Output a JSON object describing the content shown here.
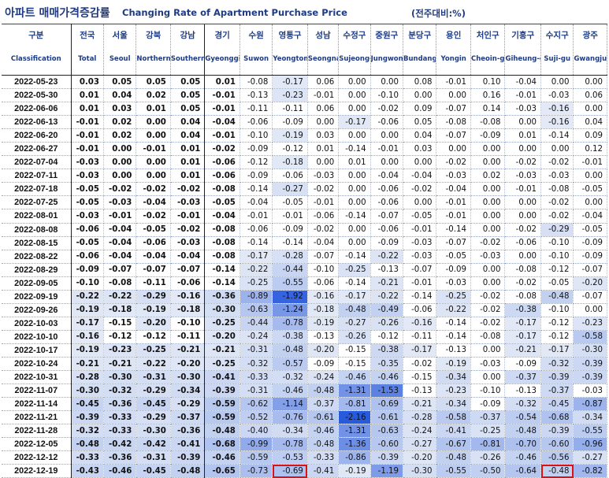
{
  "title_ko": "아파트 매매가격증감률",
  "title_en": "Changing Rate of Apartment Purchase Price",
  "unit": "(전주대비:%)",
  "highlight_color": "#e01010",
  "columns": [
    {
      "ko": "구분",
      "en": "Classification"
    },
    {
      "ko": "전국",
      "en": "Total"
    },
    {
      "ko": "서울",
      "en": "Seoul"
    },
    {
      "ko": "강북",
      "en": "Northern seoul"
    },
    {
      "ko": "강남",
      "en": "Southern Seoul"
    },
    {
      "ko": "경기",
      "en": "Gyeonggi-do"
    },
    {
      "ko": "수원",
      "en": "Suwon"
    },
    {
      "ko": "영통구",
      "en": "Yeongtong-gu"
    },
    {
      "ko": "성남",
      "en": "Seongnam"
    },
    {
      "ko": "수정구",
      "en": "Sujeong-gu"
    },
    {
      "ko": "중원구",
      "en": "Jungwon-gu"
    },
    {
      "ko": "분당구",
      "en": "Bundang-gu"
    },
    {
      "ko": "용인",
      "en": "Yongin"
    },
    {
      "ko": "처인구",
      "en": "Cheoin-gu"
    },
    {
      "ko": "기흥구",
      "en": "Giheung-gu"
    },
    {
      "ko": "수지구",
      "en": "Suji-gu"
    },
    {
      "ko": "광주",
      "en": "Gwangju"
    }
  ],
  "chart_data": {
    "type": "table",
    "title": "아파트 매매가격증감률 Changing Rate of Apartment Purchase Price",
    "unit": "(전주대비:%)",
    "columns": [
      "Total",
      "Seoul",
      "Northern seoul",
      "Southern Seoul",
      "Gyeonggi-do",
      "Suwon",
      "Yeongtong-gu",
      "Seongnam",
      "Sujeong-gu",
      "Jungwon-gu",
      "Bundang-gu",
      "Yongin",
      "Cheoin-gu",
      "Giheung-gu",
      "Suji-gu",
      "Gwangju"
    ],
    "rows": [
      {
        "date": "2022-05-23",
        "values": [
          "0.03",
          "0.05",
          "0.05",
          "0.05",
          "0.01",
          "-0.08",
          "-0.17",
          "0.06",
          "0.00",
          "0.00",
          "0.08",
          "-0.01",
          "0.10",
          "-0.04",
          "0.00",
          "0.00"
        ]
      },
      {
        "date": "2022-05-30",
        "values": [
          "0.01",
          "0.04",
          "0.02",
          "0.05",
          "-0.01",
          "-0.13",
          "-0.23",
          "-0.01",
          "0.00",
          "-0.10",
          "0.00",
          "0.00",
          "0.16",
          "-0.01",
          "-0.03",
          "0.06"
        ]
      },
      {
        "date": "2022-06-06",
        "values": [
          "0.01",
          "0.03",
          "0.01",
          "0.05",
          "-0.01",
          "-0.11",
          "-0.11",
          "0.06",
          "0.00",
          "-0.02",
          "0.09",
          "-0.07",
          "0.14",
          "-0.03",
          "-0.16",
          "0.00"
        ]
      },
      {
        "date": "2022-06-13",
        "values": [
          "-0.01",
          "0.02",
          "0.00",
          "0.04",
          "-0.04",
          "-0.06",
          "-0.09",
          "0.00",
          "-0.17",
          "-0.06",
          "0.05",
          "-0.08",
          "-0.08",
          "0.00",
          "-0.16",
          "0.04"
        ]
      },
      {
        "date": "2022-06-20",
        "values": [
          "-0.01",
          "0.02",
          "0.00",
          "0.04",
          "-0.01",
          "-0.10",
          "-0.19",
          "0.03",
          "0.00",
          "0.00",
          "0.04",
          "-0.07",
          "-0.09",
          "0.01",
          "-0.14",
          "0.09"
        ]
      },
      {
        "date": "2022-06-27",
        "values": [
          "-0.01",
          "0.00",
          "-0.01",
          "0.01",
          "-0.02",
          "-0.09",
          "-0.12",
          "0.01",
          "-0.14",
          "-0.01",
          "0.03",
          "0.00",
          "0.00",
          "0.00",
          "0.00",
          "0.12"
        ]
      },
      {
        "date": "2022-07-04",
        "values": [
          "-0.03",
          "0.00",
          "0.00",
          "0.01",
          "-0.06",
          "-0.12",
          "-0.18",
          "0.00",
          "0.01",
          "0.00",
          "0.00",
          "-0.02",
          "0.00",
          "-0.02",
          "-0.02",
          "-0.01"
        ]
      },
      {
        "date": "2022-07-11",
        "values": [
          "-0.03",
          "0.00",
          "0.00",
          "0.01",
          "-0.06",
          "-0.09",
          "-0.06",
          "-0.03",
          "0.00",
          "-0.04",
          "-0.04",
          "-0.03",
          "0.02",
          "-0.03",
          "-0.03",
          "0.00"
        ]
      },
      {
        "date": "2022-07-18",
        "values": [
          "-0.05",
          "-0.02",
          "-0.02",
          "-0.02",
          "-0.08",
          "-0.14",
          "-0.27",
          "-0.02",
          "0.00",
          "-0.06",
          "-0.02",
          "-0.04",
          "0.00",
          "-0.01",
          "-0.08",
          "-0.05"
        ]
      },
      {
        "date": "2022-07-25",
        "values": [
          "-0.05",
          "-0.03",
          "-0.04",
          "-0.03",
          "-0.05",
          "-0.04",
          "-0.05",
          "-0.01",
          "0.00",
          "-0.06",
          "0.00",
          "-0.01",
          "0.00",
          "0.00",
          "-0.02",
          "0.00"
        ]
      },
      {
        "date": "2022-08-01",
        "values": [
          "-0.03",
          "-0.01",
          "-0.02",
          "-0.01",
          "-0.04",
          "-0.01",
          "-0.01",
          "-0.06",
          "-0.14",
          "-0.07",
          "-0.05",
          "-0.01",
          "0.00",
          "0.00",
          "-0.02",
          "-0.04"
        ]
      },
      {
        "date": "2022-08-08",
        "values": [
          "-0.06",
          "-0.04",
          "-0.05",
          "-0.02",
          "-0.08",
          "-0.06",
          "-0.09",
          "-0.02",
          "0.00",
          "-0.06",
          "-0.01",
          "-0.14",
          "0.00",
          "-0.02",
          "-0.29",
          "-0.05"
        ]
      },
      {
        "date": "2022-08-15",
        "values": [
          "-0.05",
          "-0.04",
          "-0.06",
          "-0.03",
          "-0.08",
          "-0.14",
          "-0.14",
          "-0.04",
          "0.00",
          "-0.09",
          "-0.03",
          "-0.07",
          "-0.02",
          "-0.06",
          "-0.10",
          "-0.09"
        ]
      },
      {
        "date": "2022-08-22",
        "values": [
          "-0.06",
          "-0.04",
          "-0.04",
          "-0.04",
          "-0.08",
          "-0.17",
          "-0.28",
          "-0.07",
          "-0.14",
          "-0.22",
          "-0.03",
          "-0.05",
          "-0.03",
          "0.00",
          "-0.10",
          "-0.09"
        ]
      },
      {
        "date": "2022-08-29",
        "values": [
          "-0.09",
          "-0.07",
          "-0.07",
          "-0.07",
          "-0.14",
          "-0.22",
          "-0.44",
          "-0.10",
          "-0.25",
          "-0.13",
          "-0.07",
          "-0.09",
          "0.00",
          "-0.08",
          "-0.12",
          "-0.07"
        ]
      },
      {
        "date": "2022-09-05",
        "values": [
          "-0.10",
          "-0.08",
          "-0.11",
          "-0.06",
          "-0.14",
          "-0.25",
          "-0.55",
          "-0.06",
          "-0.14",
          "-0.21",
          "-0.01",
          "-0.03",
          "0.00",
          "-0.02",
          "-0.05",
          "-0.20"
        ]
      },
      {
        "date": "2022-09-19",
        "values": [
          "-0.22",
          "-0.22",
          "-0.29",
          "-0.16",
          "-0.36",
          "-0.89",
          "-1.92",
          "-0.16",
          "-0.17",
          "-0.22",
          "-0.14",
          "-0.25",
          "-0.02",
          "-0.08",
          "-0.48",
          "-0.07"
        ]
      },
      {
        "date": "2022-09-26",
        "values": [
          "-0.19",
          "-0.18",
          "-0.19",
          "-0.18",
          "-0.30",
          "-0.63",
          "-1.24",
          "-0.18",
          "-0.48",
          "-0.49",
          "-0.06",
          "-0.22",
          "-0.02",
          "-0.38",
          "-0.10",
          "0.00"
        ]
      },
      {
        "date": "2022-10-03",
        "values": [
          "-0.17",
          "-0.15",
          "-0.20",
          "-0.10",
          "-0.25",
          "-0.44",
          "-0.78",
          "-0.19",
          "-0.27",
          "-0.26",
          "-0.16",
          "-0.14",
          "-0.02",
          "-0.17",
          "-0.12",
          "-0.23"
        ]
      },
      {
        "date": "2022-10-10",
        "values": [
          "-0.16",
          "-0.12",
          "-0.12",
          "-0.11",
          "-0.20",
          "-0.24",
          "-0.38",
          "-0.13",
          "-0.26",
          "-0.12",
          "-0.11",
          "-0.14",
          "-0.08",
          "-0.17",
          "-0.12",
          "-0.58"
        ]
      },
      {
        "date": "2022-10-17",
        "values": [
          "-0.19",
          "-0.23",
          "-0.25",
          "-0.21",
          "-0.21",
          "-0.31",
          "-0.48",
          "-0.20",
          "-0.15",
          "-0.38",
          "-0.17",
          "-0.13",
          "0.00",
          "-0.21",
          "-0.17",
          "-0.30"
        ]
      },
      {
        "date": "2022-10-24",
        "values": [
          "-0.21",
          "-0.21",
          "-0.22",
          "-0.20",
          "-0.25",
          "-0.32",
          "-0.57",
          "-0.09",
          "-0.15",
          "-0.35",
          "-0.02",
          "-0.19",
          "-0.03",
          "-0.09",
          "-0.32",
          "-0.39"
        ]
      },
      {
        "date": "2022-10-31",
        "values": [
          "-0.28",
          "-0.30",
          "-0.31",
          "-0.30",
          "-0.41",
          "-0.33",
          "-0.32",
          "-0.24",
          "-0.46",
          "-0.46",
          "-0.15",
          "-0.34",
          "0.00",
          "-0.37",
          "-0.39",
          "-0.39"
        ]
      },
      {
        "date": "2022-11-07",
        "values": [
          "-0.30",
          "-0.32",
          "-0.29",
          "-0.34",
          "-0.39",
          "-0.31",
          "-0.46",
          "-0.48",
          "-1.31",
          "-1.53",
          "-0.13",
          "-0.23",
          "-0.10",
          "-0.13",
          "-0.37",
          "-0.03"
        ]
      },
      {
        "date": "2022-11-14",
        "values": [
          "-0.45",
          "-0.36",
          "-0.45",
          "-0.29",
          "-0.59",
          "-0.62",
          "-1.14",
          "-0.37",
          "-0.81",
          "-0.69",
          "-0.21",
          "-0.34",
          "-0.09",
          "-0.32",
          "-0.45",
          "-0.87"
        ]
      },
      {
        "date": "2022-11-21",
        "values": [
          "-0.39",
          "-0.33",
          "-0.29",
          "-0.37",
          "-0.59",
          "-0.52",
          "-0.76",
          "-0.61",
          "-2.16",
          "-0.61",
          "-0.28",
          "-0.58",
          "-0.37",
          "-0.54",
          "-0.68",
          "-0.34"
        ]
      },
      {
        "date": "2022-11-28",
        "values": [
          "-0.32",
          "-0.33",
          "-0.30",
          "-0.36",
          "-0.48",
          "-0.40",
          "-0.34",
          "-0.46",
          "-1.31",
          "-0.63",
          "-0.24",
          "-0.41",
          "-0.25",
          "-0.48",
          "-0.39",
          "-0.55"
        ]
      },
      {
        "date": "2022-12-05",
        "values": [
          "-0.48",
          "-0.42",
          "-0.42",
          "-0.41",
          "-0.68",
          "-0.99",
          "-0.78",
          "-0.48",
          "-1.36",
          "-0.60",
          "-0.27",
          "-0.67",
          "-0.81",
          "-0.70",
          "-0.60",
          "-0.96"
        ]
      },
      {
        "date": "2022-12-12",
        "values": [
          "-0.33",
          "-0.36",
          "-0.31",
          "-0.39",
          "-0.46",
          "-0.59",
          "-0.53",
          "-0.33",
          "-0.86",
          "-0.39",
          "-0.20",
          "-0.48",
          "-0.26",
          "-0.46",
          "-0.56",
          "-0.27"
        ]
      },
      {
        "date": "2022-12-19",
        "values": [
          "-0.43",
          "-0.46",
          "-0.45",
          "-0.48",
          "-0.65",
          "-0.73",
          "-0.69",
          "-0.41",
          "-0.19",
          "-1.19",
          "-0.30",
          "-0.55",
          "-0.50",
          "-0.64",
          "-0.48",
          "-0.82"
        ]
      }
    ],
    "highlighted_cells": [
      {
        "date": "2022-12-19",
        "column": "Yeongtong-gu"
      },
      {
        "date": "2022-12-19",
        "column": "Suji-gu"
      }
    ]
  }
}
